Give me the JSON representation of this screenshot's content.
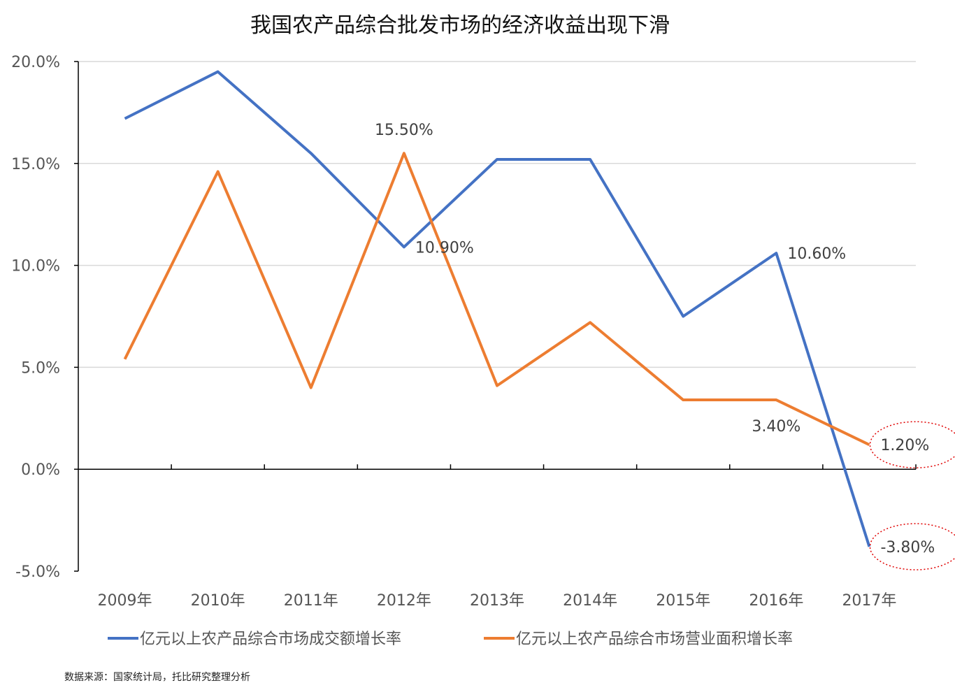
{
  "chart_data": {
    "type": "line",
    "title": "我国农产品综合批发市场的经济收益出现下滑",
    "categories": [
      "2009年",
      "2010年",
      "2011年",
      "2012年",
      "2013年",
      "2014年",
      "2015年",
      "2016年",
      "2017年"
    ],
    "ylim": [
      -5,
      20
    ],
    "yticks": [
      -5,
      0,
      5,
      10,
      15,
      20
    ],
    "ytick_labels": [
      "-5.0%",
      "0.0%",
      "5.0%",
      "10.0%",
      "15.0%",
      "20.0%"
    ],
    "grid": true,
    "legend_position": "bottom",
    "series": [
      {
        "name": "亿元以上农产品综合市场成交额增长率",
        "color": "#4472C4",
        "values": [
          17.2,
          19.5,
          15.5,
          10.9,
          15.2,
          15.2,
          7.5,
          10.6,
          -3.8
        ]
      },
      {
        "name": "亿元以上农产品综合市场营业面积增长率",
        "color": "#ED7D31",
        "values": [
          5.4,
          14.6,
          4.0,
          15.5,
          4.1,
          7.2,
          3.4,
          3.4,
          1.2
        ]
      }
    ],
    "data_labels": [
      {
        "series": 1,
        "index": 3,
        "text": "15.50%",
        "pos": "above"
      },
      {
        "series": 0,
        "index": 3,
        "text": "10.90%",
        "pos": "right"
      },
      {
        "series": 0,
        "index": 7,
        "text": "10.60%",
        "pos": "right"
      },
      {
        "series": 1,
        "index": 7,
        "text": "3.40%",
        "pos": "below"
      },
      {
        "series": 1,
        "index": 8,
        "text": "1.20%",
        "pos": "right",
        "highlight": true
      },
      {
        "series": 0,
        "index": 8,
        "text": "-3.80%",
        "pos": "right",
        "highlight": true
      }
    ],
    "highlight_color": "#E00000"
  },
  "source": "数据来源：国家统计局，托比研究整理分析"
}
